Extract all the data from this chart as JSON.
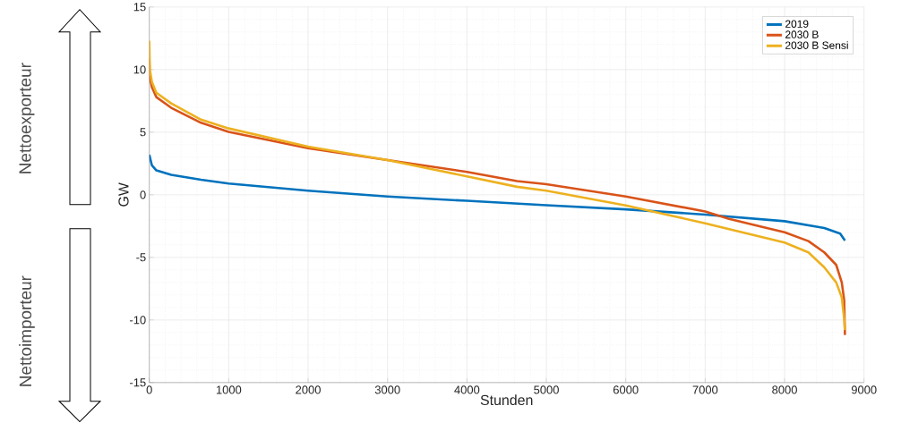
{
  "chart_data": {
    "type": "line",
    "xlabel": "Stunden",
    "ylabel": "GW",
    "xlim": [
      0,
      9000
    ],
    "ylim": [
      -15,
      15
    ],
    "xticks": [
      0,
      1000,
      2000,
      3000,
      4000,
      5000,
      6000,
      7000,
      8000,
      9000
    ],
    "yticks": [
      -15,
      -10,
      -5,
      0,
      5,
      10,
      15
    ],
    "grid": true,
    "legend": "top right",
    "line_style": "solid",
    "annotations": [
      "Nettoexporteur",
      "Nettoimporteur"
    ],
    "series": [
      {
        "name": "2019",
        "color": "#0072bd",
        "x": [
          0,
          33,
          89,
          276,
          652,
          1000,
          2000,
          3000,
          4000,
          5000,
          6000,
          7000,
          8000,
          8500,
          8700,
          8760
        ],
        "values": [
          3.2,
          2.35,
          1.95,
          1.6,
          1.2,
          0.9,
          0.33,
          -0.14,
          -0.48,
          -0.83,
          -1.16,
          -1.58,
          -2.11,
          -2.65,
          -3.1,
          -3.66
        ]
      },
      {
        "name": "2030 B",
        "color": "#d95319",
        "x": [
          0,
          6,
          33,
          89,
          276,
          652,
          1000,
          2000,
          3000,
          4000,
          4630,
          5000,
          6000,
          7000,
          7300,
          8000,
          8300,
          8500,
          8650,
          8720,
          8750,
          8760
        ],
        "values": [
          10.9,
          9.4,
          8.6,
          7.8,
          6.95,
          5.75,
          5.03,
          3.72,
          2.78,
          1.83,
          1.1,
          0.85,
          -0.14,
          -1.33,
          -1.92,
          -3.0,
          -3.7,
          -4.6,
          -5.6,
          -7.0,
          -8.4,
          -11.2
        ]
      },
      {
        "name": "2030 B Sensi",
        "color": "#edb120",
        "x": [
          0,
          6,
          33,
          89,
          276,
          652,
          1000,
          2000,
          3000,
          4000,
          4630,
          5000,
          6000,
          6500,
          7000,
          8000,
          8300,
          8500,
          8650,
          8720,
          8750,
          8760
        ],
        "values": [
          12.3,
          10.05,
          9.0,
          8.15,
          7.3,
          6.0,
          5.3,
          3.85,
          2.78,
          1.47,
          0.64,
          0.33,
          -0.85,
          -1.56,
          -2.28,
          -3.82,
          -4.6,
          -5.8,
          -7.0,
          -8.2,
          -9.9,
          -10.8
        ]
      }
    ]
  }
}
